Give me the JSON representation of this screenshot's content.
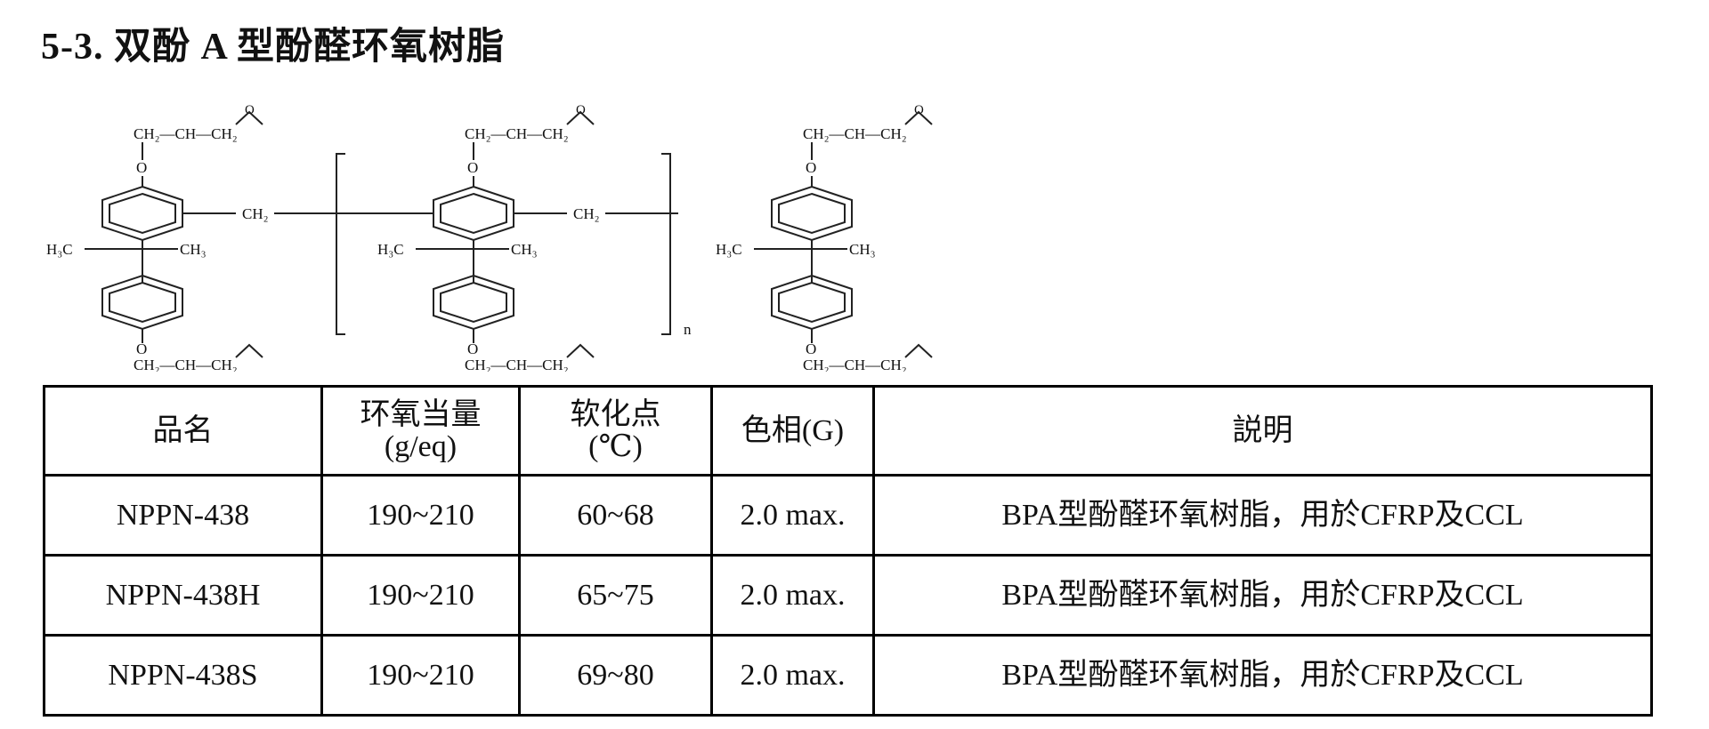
{
  "page": {
    "title": "5-3. 双酚 A 型酚醛环氧树脂"
  },
  "structure": {
    "groups": {
      "epoxy_top": "CH₂—CH—CH₂",
      "oxygen": "O",
      "methylene": "CH₂",
      "methyl_left": "H₃C",
      "methyl_right": "CH₃",
      "repeat_index": "n"
    }
  },
  "table": {
    "headers": [
      {
        "line1": "品名",
        "line2": ""
      },
      {
        "line1": "环氧当量",
        "line2": "(g/eq)"
      },
      {
        "line1": "软化点",
        "line2": "(℃)"
      },
      {
        "line1": "色相(G)",
        "line2": ""
      },
      {
        "line1": "説明",
        "line2": ""
      }
    ],
    "rows": [
      [
        "NPPN-438",
        "190~210",
        "60~68",
        "2.0 max.",
        "BPA型酚醛环氧树脂，用於CFRP及CCL"
      ],
      [
        "NPPN-438H",
        "190~210",
        "65~75",
        "2.0 max.",
        "BPA型酚醛环氧树脂，用於CFRP及CCL"
      ],
      [
        "NPPN-438S",
        "190~210",
        "69~80",
        "2.0 max.",
        "BPA型酚醛环氧树脂，用於CFRP及CCL"
      ]
    ]
  }
}
